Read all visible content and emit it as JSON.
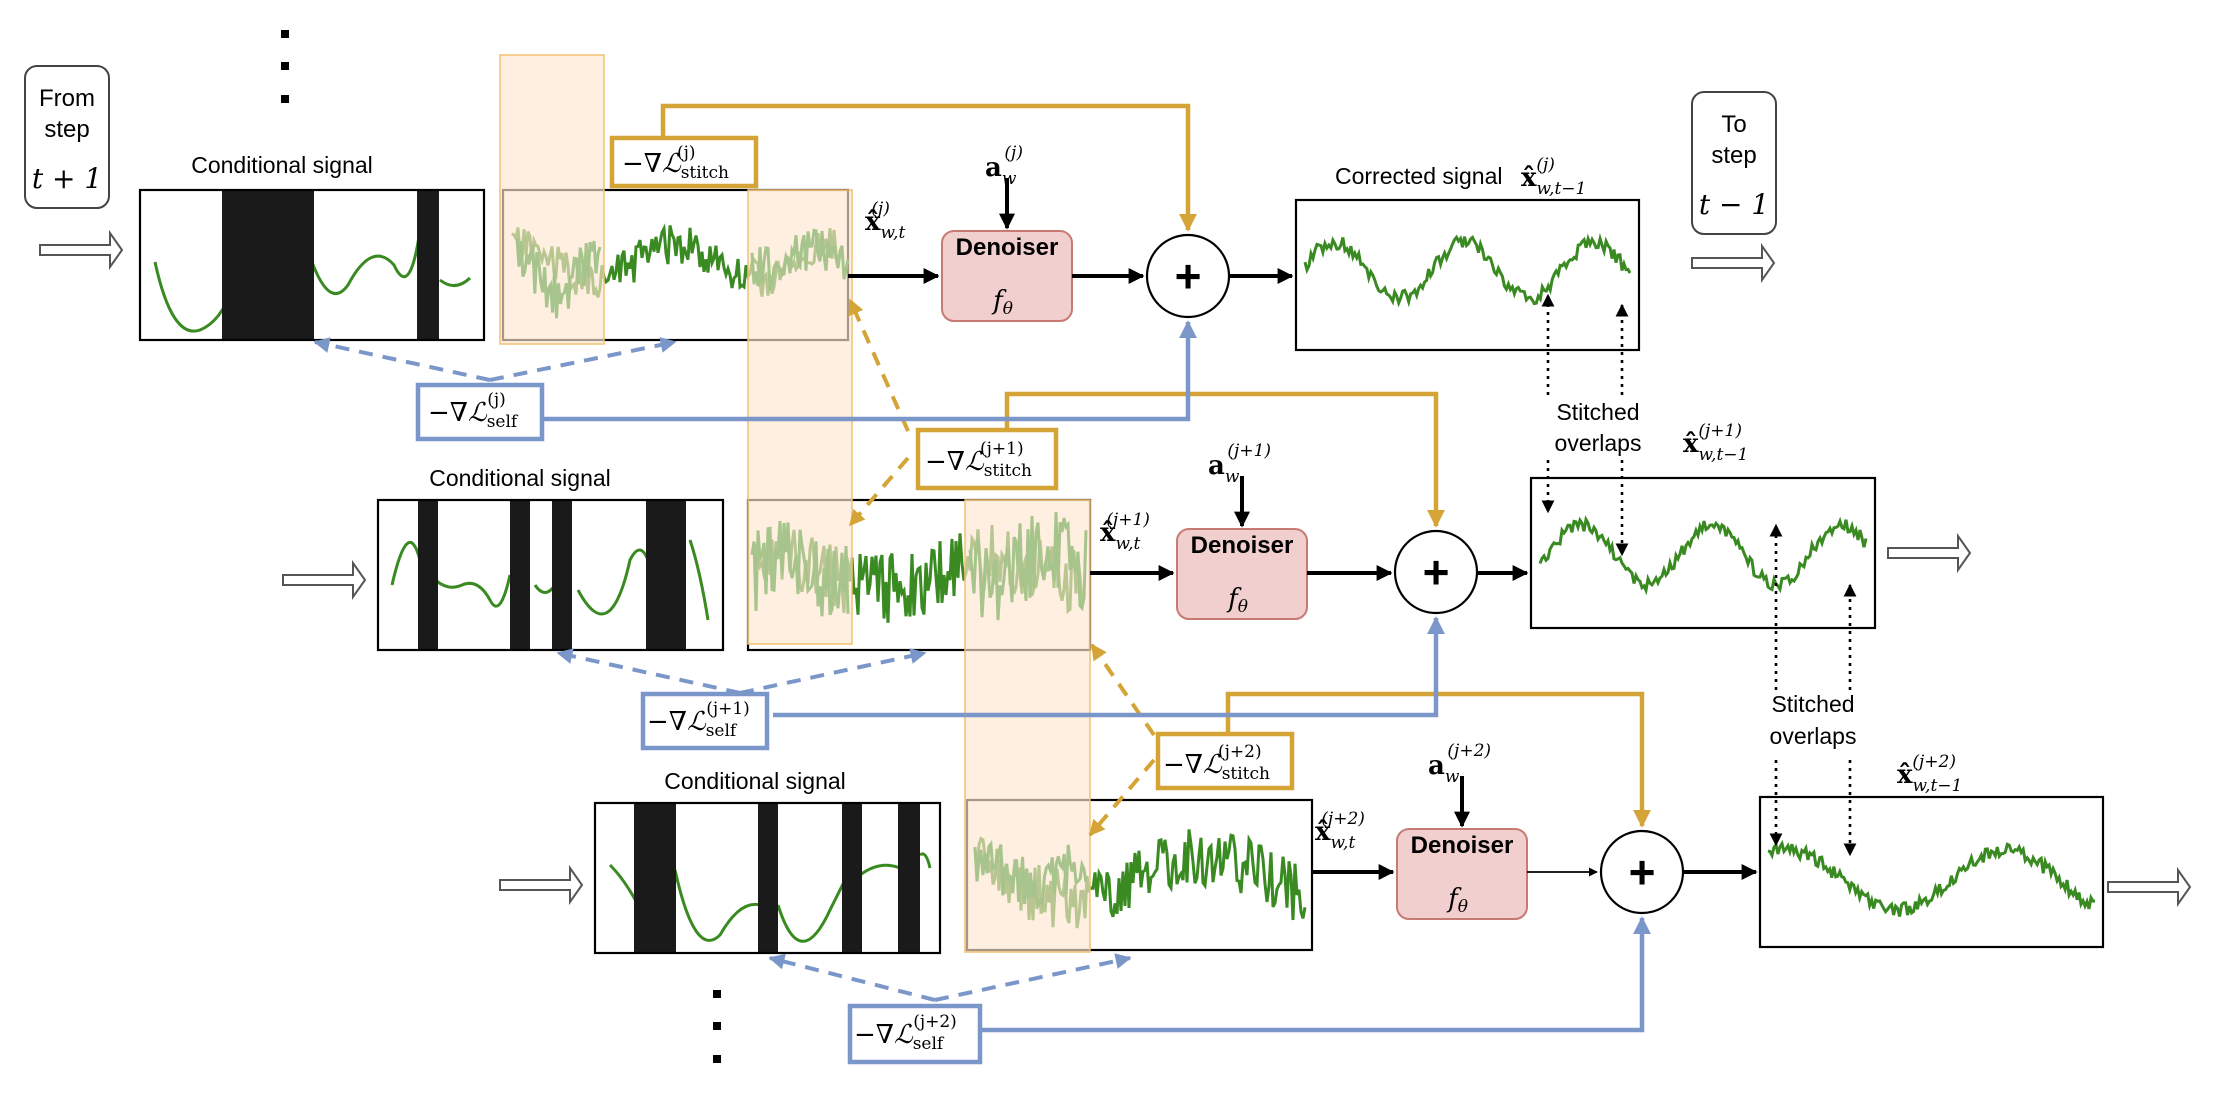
{
  "from_step": {
    "line1": "From",
    "line2": "step",
    "line3": "t + 1"
  },
  "to_step": {
    "line1": "To",
    "line2": "step",
    "line3": "t − 1"
  },
  "conditional_signal_label": "Conditional signal",
  "corrected_signal_label": "Corrected signal",
  "denoiser": {
    "label": "Denoiser",
    "func": "f",
    "func_sub": "θ"
  },
  "sum_symbol": "+",
  "stitched_overlaps": {
    "line1": "Stitched",
    "line2": "overlaps"
  },
  "grad_prefix": "−∇",
  "loss_symbol": "ℒ",
  "stitch_sub": "stitch",
  "self_sub": "self",
  "x_hat_symbol": "x̂",
  "action_symbol": "a",
  "rows": [
    {
      "index": "j",
      "sup": "(j)",
      "x_sub": "w,t",
      "xprev_sub": "w,t−1",
      "a_sub": "w"
    },
    {
      "index": "j+1",
      "sup": "(j+1)",
      "x_sub": "w,t",
      "xprev_sub": "w,t−1",
      "a_sub": "w"
    },
    {
      "index": "j+2",
      "sup": "(j+2)",
      "x_sub": "w,t",
      "xprev_sub": "w,t−1",
      "a_sub": "w"
    }
  ],
  "colors": {
    "stitch_guidance": "#d4a437",
    "self_guidance": "#7b96c8",
    "signal": "#3a8a22",
    "signal_overlap": "#a7c48c",
    "overlap_region": "#fde6cf",
    "denoiser_fill": "#f2cfcf"
  },
  "icons": [
    "hollow-arrow-icon",
    "vertical-ellipsis-icon",
    "plus-icon"
  ]
}
